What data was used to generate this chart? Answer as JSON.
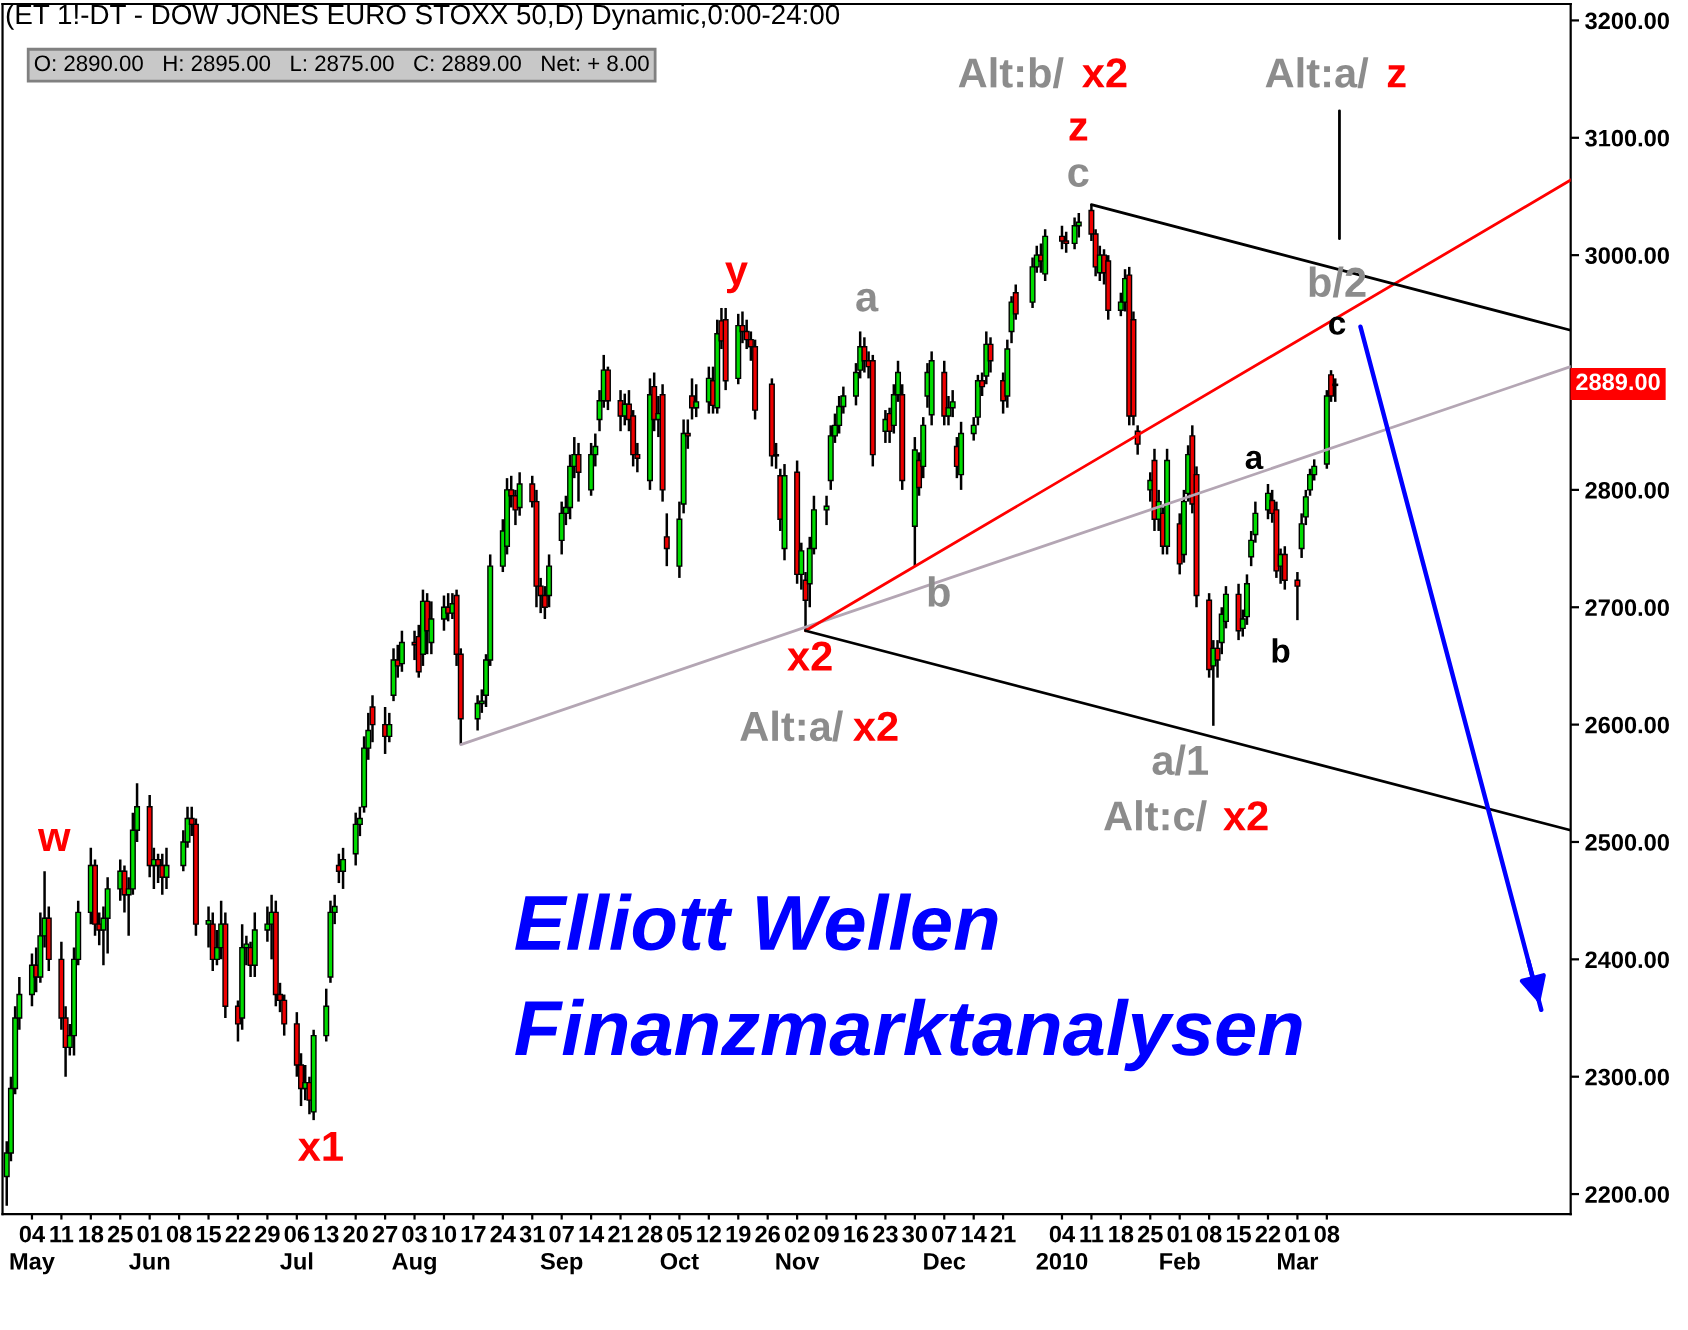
{
  "chart_data": {
    "type": "candlestick",
    "title": "(ET 1!-DT - DOW JONES EURO STOXX 50,D) Dynamic,0:00-24:00",
    "subtitle": "O: 2890.00   H: 2895.00   L: 2875.00   C: 2889.00   Net: + 8.00",
    "colors": [
      "#00dd00",
      "#00dd00",
      "#00dd00",
      "#00dd00",
      "#00dd00",
      "#ee0000",
      "#00dd00",
      "#00dd00",
      "#ee0000",
      "#ee0000",
      "#ee0000",
      "#00dd00",
      "#00dd00",
      "#00dd00",
      "#00dd00",
      "#ee0000",
      "#ee0000",
      "#00dd00",
      "#00dd00",
      "#00dd00",
      "#ee0000",
      "#00dd00",
      "#00dd00",
      "#00dd00",
      "#ee0000",
      "#00dd00",
      "#ee0000",
      "#ee0000",
      "#00dd00",
      "#00dd00",
      "#00dd00",
      "#ee0000",
      "#ee0000",
      "#00dd00",
      "#ee0000",
      "#00dd00",
      "#00dd00",
      "#ee0000",
      "#ee0000",
      "#00dd00",
      "#00dd00",
      "#ee0000",
      "#00dd00",
      "#00dd00",
      "#00dd00",
      "#ee0000",
      "#ee0000",
      "#ee0000",
      "#ee0000",
      "#ee0000",
      "#00dd00",
      "#ee0000",
      "#00dd00",
      "#00dd00",
      "#00dd00",
      "#00dd00",
      "#ee0000",
      "#00dd00",
      "#00dd00",
      "#00dd00",
      "#00dd00",
      "#00dd00",
      "#ee0000",
      "#ee0000",
      "#00dd00",
      "#00dd00",
      "#ee0000",
      "#00dd00",
      "#ee0000",
      "#ee0000",
      "#00dd00",
      "#ee0000",
      "#00dd00",
      "#00dd00",
      "#ee0000",
      "#00dd00",
      "#ee0000",
      "#ee0000",
      "#00dd00",
      "#00dd00",
      "#00dd00",
      "#00dd00",
      "#00dd00",
      "#00dd00",
      "#ee0000",
      "#ee0000",
      "#00dd00",
      "#ee0000",
      "#ee0000",
      "#ee0000",
      "#ee0000",
      "#00dd00",
      "#00dd00",
      "#00dd00",
      "#00dd00",
      "#00dd00",
      "#ee0000",
      "#00dd00",
      "#00dd00",
      "#00dd00",
      "#00dd00",
      "#ee0000",
      "#ee0000",
      "#00dd00",
      "#ee0000",
      "#ee0000",
      "#ee0000",
      "#00dd00",
      "#ee0000",
      "#00dd00",
      "#ee0000",
      "#ee0000",
      "#00dd00",
      "#00dd00",
      "#ee0000",
      "#ee0000",
      "#00dd00",
      "#00dd00",
      "#ee0000",
      "#00dd00",
      "#ee0000",
      "#ee0000",
      "#00dd00",
      "#ee0000",
      "#ee0000",
      "#ee0000",
      "#ee0000",
      "#ee0000",
      "#00dd00",
      "#ee0000",
      "#00dd00",
      "#ee0000",
      "#00dd00",
      "#ee0000",
      "#00dd00",
      "#00dd00",
      "#00dd00",
      "#00dd00",
      "#00dd00",
      "#00dd00",
      "#00dd00",
      "#00dd00",
      "#00dd00",
      "#ee0000",
      "#ee0000",
      "#ee0000",
      "#00dd00",
      "#ee0000",
      "#00dd00",
      "#00dd00",
      "#ee0000",
      "#00dd00",
      "#ee0000",
      "#00dd00",
      "#00dd00",
      "#00dd00",
      "#ee0000",
      "#00dd00",
      "#00dd00",
      "#ee0000",
      "#00dd00",
      "#00dd00",
      "#00dd00",
      "#ee0000",
      "#00dd00",
      "#ee0000",
      "#ee0000",
      "#00dd00",
      "#00dd00",
      "#ee0000",
      "#00dd00",
      "#00dd00",
      "#ee0000",
      "#00dd00",
      "#ee0000",
      "#ee0000",
      "#00dd00",
      "#00dd00",
      "#ee0000",
      "#ee0000",
      "#00dd00",
      "#ee0000",
      "#ee0000",
      "#00dd00",
      "#00dd00",
      "#ee0000",
      "#ee0000",
      "#ee0000",
      "#00dd00",
      "#ee0000",
      "#00dd00",
      "#ee0000",
      "#00dd00",
      "#ee0000",
      "#00dd00",
      "#00dd00",
      "#ee0000",
      "#ee0000",
      "#ee0000",
      "#00dd00",
      "#ee0000",
      "#00dd00",
      "#00dd00",
      "#ee0000",
      "#00dd00",
      "#00dd00",
      "#00dd00",
      "#00dd00",
      "#00dd00",
      "#ee0000",
      "#ee0000",
      "#00dd00",
      "#ee0000",
      "#ee0000",
      "#00dd00",
      "#00dd00",
      "#00dd00",
      "#00dd00",
      "#00dd00",
      "#ee0000",
      "#ee0000"
    ],
    "x": [
      "2009-04-28",
      "2009-04-29",
      "2009-04-30",
      "2009-05-01",
      "2009-05-04",
      "2009-05-05",
      "2009-05-06",
      "2009-05-07",
      "2009-05-08",
      "2009-05-11",
      "2009-05-12",
      "2009-05-13",
      "2009-05-14",
      "2009-05-15",
      "2009-05-18",
      "2009-05-19",
      "2009-05-20",
      "2009-05-21",
      "2009-05-22",
      "2009-05-25",
      "2009-05-26",
      "2009-05-27",
      "2009-05-28",
      "2009-05-29",
      "2009-06-01",
      "2009-06-02",
      "2009-06-03",
      "2009-06-04",
      "2009-06-05",
      "2009-06-09",
      "2009-06-10",
      "2009-06-11",
      "2009-06-12",
      "2009-06-15",
      "2009-06-16",
      "2009-06-17",
      "2009-06-18",
      "2009-06-19",
      "2009-06-22",
      "2009-06-23",
      "2009-06-24",
      "2009-06-25",
      "2009-06-26",
      "2009-06-29",
      "2009-06-30",
      "2009-07-01",
      "2009-07-02",
      "2009-07-03",
      "2009-07-06",
      "2009-07-07",
      "2009-07-08",
      "2009-07-09",
      "2009-07-10",
      "2009-07-13",
      "2009-07-14",
      "2009-07-15",
      "2009-07-16",
      "2009-07-17",
      "2009-07-20",
      "2009-07-21",
      "2009-07-22",
      "2009-07-23",
      "2009-07-24",
      "2009-07-27",
      "2009-07-28",
      "2009-07-29",
      "2009-07-30",
      "2009-07-31",
      "2009-08-03",
      "2009-08-04",
      "2009-08-05",
      "2009-08-06",
      "2009-08-07",
      "2009-08-10",
      "2009-08-11",
      "2009-08-12",
      "2009-08-13",
      "2009-08-14",
      "2009-08-18",
      "2009-08-19",
      "2009-08-20",
      "2009-08-21",
      "2009-08-24",
      "2009-08-25",
      "2009-08-26",
      "2009-08-27",
      "2009-08-28",
      "2009-08-31",
      "2009-09-01",
      "2009-09-02",
      "2009-09-03",
      "2009-09-04",
      "2009-09-07",
      "2009-09-08",
      "2009-09-09",
      "2009-09-10",
      "2009-09-11",
      "2009-09-14",
      "2009-09-15",
      "2009-09-16",
      "2009-09-17",
      "2009-09-18",
      "2009-09-21",
      "2009-09-22",
      "2009-09-23",
      "2009-09-24",
      "2009-09-25",
      "2009-09-28",
      "2009-09-29",
      "2009-09-30",
      "2009-10-01",
      "2009-10-02",
      "2009-10-05",
      "2009-10-06",
      "2009-10-07",
      "2009-10-08",
      "2009-10-09",
      "2009-10-12",
      "2009-10-13",
      "2009-10-14",
      "2009-10-15",
      "2009-10-16",
      "2009-10-19",
      "2009-10-20",
      "2009-10-21",
      "2009-10-22",
      "2009-10-23",
      "2009-10-27",
      "2009-10-28",
      "2009-10-29",
      "2009-10-30",
      "2009-11-02",
      "2009-11-03",
      "2009-11-04",
      "2009-11-05",
      "2009-11-06",
      "2009-11-09",
      "2009-11-10",
      "2009-11-11",
      "2009-11-12",
      "2009-11-13",
      "2009-11-16",
      "2009-11-17",
      "2009-11-18",
      "2009-11-19",
      "2009-11-20",
      "2009-11-23",
      "2009-11-24",
      "2009-11-25",
      "2009-11-26",
      "2009-11-27",
      "2009-11-30",
      "2009-12-01",
      "2009-12-02",
      "2009-12-03",
      "2009-12-04",
      "2009-12-07",
      "2009-12-08",
      "2009-12-09",
      "2009-12-10",
      "2009-12-11",
      "2009-12-14",
      "2009-12-15",
      "2009-12-16",
      "2009-12-17",
      "2009-12-18",
      "2009-12-21",
      "2009-12-22",
      "2009-12-23",
      "2009-12-24",
      "2009-12-28",
      "2009-12-29",
      "2009-12-30",
      "2009-12-31",
      "2010-01-04",
      "2010-01-05",
      "2010-01-07",
      "2010-01-08",
      "2010-01-11",
      "2010-01-12",
      "2010-01-13",
      "2010-01-14",
      "2010-01-15",
      "2010-01-18",
      "2010-01-19",
      "2010-01-20",
      "2010-01-21",
      "2010-01-22",
      "2010-01-25",
      "2010-01-26",
      "2010-01-27",
      "2010-01-28",
      "2010-01-29",
      "2010-02-01",
      "2010-02-02",
      "2010-02-03",
      "2010-02-04",
      "2010-02-05",
      "2010-02-08",
      "2010-02-09",
      "2010-02-10",
      "2010-02-11",
      "2010-02-12",
      "2010-02-15",
      "2010-02-16",
      "2010-02-17",
      "2010-02-18",
      "2010-02-19",
      "2010-02-22",
      "2010-02-23",
      "2010-02-24",
      "2010-02-25",
      "2010-02-26",
      "2010-03-01",
      "2010-03-02",
      "2010-03-03",
      "2010-03-04",
      "2010-03-05",
      "2010-03-08",
      "2010-03-09",
      "2010-03-10"
    ],
    "ohlc": [
      [
        2215,
        2245,
        2190,
        2235
      ],
      [
        2235,
        2300,
        2228,
        2290
      ],
      [
        2290,
        2360,
        2285,
        2350
      ],
      [
        2350,
        2385,
        2340,
        2370
      ],
      [
        2370,
        2405,
        2360,
        2395
      ],
      [
        2395,
        2410,
        2372,
        2385
      ],
      [
        2385,
        2440,
        2380,
        2420
      ],
      [
        2420,
        2475,
        2410,
        2435
      ],
      [
        2435,
        2445,
        2390,
        2400
      ],
      [
        2400,
        2415,
        2340,
        2350
      ],
      [
        2350,
        2360,
        2300,
        2325
      ],
      [
        2325,
        2345,
        2318,
        2335
      ],
      [
        2335,
        2410,
        2318,
        2400
      ],
      [
        2400,
        2450,
        2395,
        2440
      ],
      [
        2440,
        2495,
        2430,
        2480
      ],
      [
        2480,
        2485,
        2420,
        2430
      ],
      [
        2430,
        2440,
        2412,
        2425
      ],
      [
        2425,
        2445,
        2395,
        2435
      ],
      [
        2435,
        2470,
        2405,
        2460
      ],
      [
        2460,
        2485,
        2450,
        2475
      ],
      [
        2475,
        2480,
        2440,
        2455
      ],
      [
        2455,
        2470,
        2420,
        2460
      ],
      [
        2460,
        2525,
        2455,
        2510
      ],
      [
        2510,
        2550,
        2500,
        2530
      ],
      [
        2530,
        2540,
        2470,
        2480
      ],
      [
        2480,
        2495,
        2460,
        2485
      ],
      [
        2485,
        2490,
        2465,
        2480
      ],
      [
        2480,
        2490,
        2455,
        2470
      ],
      [
        2470,
        2495,
        2460,
        2480
      ],
      [
        2480,
        2510,
        2475,
        2500
      ],
      [
        2500,
        2530,
        2495,
        2520
      ],
      [
        2520,
        2530,
        2505,
        2515
      ],
      [
        2515,
        2520,
        2420,
        2430
      ],
      [
        2430,
        2445,
        2410,
        2433
      ],
      [
        2430,
        2440,
        2390,
        2400
      ],
      [
        2400,
        2425,
        2395,
        2410
      ],
      [
        2410,
        2450,
        2400,
        2430
      ],
      [
        2430,
        2440,
        2350,
        2360
      ],
      [
        2360,
        2365,
        2330,
        2345
      ],
      [
        2350,
        2430,
        2340,
        2410
      ],
      [
        2410,
        2420,
        2395,
        2413
      ],
      [
        2410,
        2415,
        2385,
        2395
      ],
      [
        2395,
        2440,
        2385,
        2425
      ],
      [
        2425,
        2445,
        2415,
        2430
      ],
      [
        2430,
        2455,
        2400,
        2440
      ],
      [
        2440,
        2450,
        2360,
        2370
      ],
      [
        2370,
        2380,
        2355,
        2365
      ],
      [
        2365,
        2370,
        2335,
        2345
      ],
      [
        2345,
        2355,
        2300,
        2310
      ],
      [
        2310,
        2320,
        2275,
        2290
      ],
      [
        2290,
        2310,
        2280,
        2295
      ],
      [
        2295,
        2300,
        2268,
        2280
      ],
      [
        2270,
        2340,
        2263,
        2335
      ],
      [
        2335,
        2375,
        2330,
        2360
      ],
      [
        2385,
        2450,
        2380,
        2440
      ],
      [
        2440,
        2455,
        2430,
        2445
      ],
      [
        2480,
        2490,
        2465,
        2475
      ],
      [
        2475,
        2495,
        2460,
        2485
      ],
      [
        2490,
        2525,
        2480,
        2515
      ],
      [
        2515,
        2530,
        2505,
        2520
      ],
      [
        2530,
        2590,
        2525,
        2580
      ],
      [
        2580,
        2610,
        2570,
        2595
      ],
      [
        2615,
        2625,
        2585,
        2600
      ],
      [
        2600,
        2615,
        2575,
        2590
      ],
      [
        2590,
        2610,
        2585,
        2600
      ],
      [
        2625,
        2665,
        2620,
        2655
      ],
      [
        2655,
        2668,
        2640,
        2650
      ],
      [
        2652,
        2680,
        2645,
        2670
      ],
      [
        2670,
        2680,
        2655,
        2668
      ],
      [
        2675,
        2685,
        2640,
        2645
      ],
      [
        2660,
        2715,
        2650,
        2705
      ],
      [
        2705,
        2712,
        2660,
        2680
      ],
      [
        2670,
        2705,
        2660,
        2690
      ],
      [
        2690,
        2710,
        2680,
        2700
      ],
      [
        2700,
        2712,
        2688,
        2695
      ],
      [
        2695,
        2712,
        2690,
        2703
      ],
      [
        2710,
        2715,
        2650,
        2660
      ],
      [
        2660,
        2665,
        2583,
        2605
      ],
      [
        2605,
        2625,
        2595,
        2618
      ],
      [
        2618,
        2630,
        2610,
        2620
      ],
      [
        2625,
        2660,
        2615,
        2655
      ],
      [
        2655,
        2745,
        2650,
        2735
      ],
      [
        2735,
        2775,
        2730,
        2765
      ],
      [
        2752,
        2810,
        2745,
        2800
      ],
      [
        2800,
        2812,
        2785,
        2795
      ],
      [
        2795,
        2800,
        2770,
        2783
      ],
      [
        2785,
        2815,
        2778,
        2805
      ],
      [
        2805,
        2812,
        2785,
        2790
      ],
      [
        2790,
        2800,
        2700,
        2718
      ],
      [
        2718,
        2725,
        2695,
        2710
      ],
      [
        2710,
        2718,
        2690,
        2700
      ],
      [
        2710,
        2745,
        2700,
        2735
      ],
      [
        2757,
        2790,
        2745,
        2780
      ],
      [
        2780,
        2795,
        2770,
        2785
      ],
      [
        2785,
        2830,
        2775,
        2820
      ],
      [
        2820,
        2845,
        2810,
        2830
      ],
      [
        2830,
        2840,
        2790,
        2815
      ],
      [
        2800,
        2840,
        2795,
        2830
      ],
      [
        2830,
        2848,
        2820,
        2837
      ],
      [
        2860,
        2885,
        2850,
        2876
      ],
      [
        2876,
        2915,
        2870,
        2902
      ],
      [
        2902,
        2905,
        2868,
        2876
      ],
      [
        2876,
        2885,
        2850,
        2863
      ],
      [
        2863,
        2882,
        2855,
        2873
      ],
      [
        2873,
        2885,
        2850,
        2860
      ],
      [
        2863,
        2868,
        2820,
        2830
      ],
      [
        2830,
        2840,
        2815,
        2827
      ],
      [
        2808,
        2895,
        2800,
        2881
      ],
      [
        2888,
        2900,
        2850,
        2860
      ],
      [
        2860,
        2880,
        2845,
        2865
      ],
      [
        2881,
        2890,
        2790,
        2800
      ],
      [
        2760,
        2780,
        2735,
        2750
      ],
      [
        2735,
        2790,
        2725,
        2775
      ],
      [
        2788,
        2860,
        2780,
        2848
      ],
      [
        2848,
        2860,
        2835,
        2846
      ],
      [
        2880,
        2895,
        2860,
        2870
      ],
      [
        2870,
        2890,
        2862,
        2875
      ],
      [
        2875,
        2905,
        2865,
        2895
      ],
      [
        2893,
        2905,
        2865,
        2872
      ],
      [
        2870,
        2945,
        2865,
        2933
      ],
      [
        2944,
        2955,
        2920,
        2927
      ],
      [
        2945,
        2955,
        2885,
        2893
      ],
      [
        2895,
        2950,
        2890,
        2940
      ],
      [
        2940,
        2952,
        2925,
        2935
      ],
      [
        2935,
        2945,
        2920,
        2928
      ],
      [
        2928,
        2935,
        2910,
        2922
      ],
      [
        2922,
        2928,
        2860,
        2868
      ],
      [
        2890,
        2895,
        2820,
        2829
      ],
      [
        2829,
        2840,
        2818,
        2830
      ],
      [
        2812,
        2818,
        2765,
        2775
      ],
      [
        2750,
        2822,
        2740,
        2812
      ],
      [
        2815,
        2825,
        2720,
        2728
      ],
      [
        2728,
        2755,
        2715,
        2748
      ],
      [
        2723,
        2730,
        2680,
        2706
      ],
      [
        2720,
        2760,
        2700,
        2750
      ],
      [
        2750,
        2795,
        2745,
        2783
      ],
      [
        2783,
        2795,
        2770,
        2786
      ],
      [
        2808,
        2855,
        2800,
        2846
      ],
      [
        2846,
        2865,
        2840,
        2855
      ],
      [
        2855,
        2880,
        2848,
        2871
      ],
      [
        2871,
        2888,
        2865,
        2880
      ],
      [
        2880,
        2908,
        2872,
        2900
      ],
      [
        2902,
        2935,
        2895,
        2922
      ],
      [
        2922,
        2930,
        2900,
        2910
      ],
      [
        2910,
        2918,
        2895,
        2905
      ],
      [
        2910,
        2915,
        2820,
        2830
      ],
      [
        2850,
        2868,
        2840,
        2860
      ],
      [
        2865,
        2870,
        2840,
        2850
      ],
      [
        2855,
        2890,
        2848,
        2881
      ],
      [
        2881,
        2910,
        2875,
        2900
      ],
      [
        2881,
        2890,
        2800,
        2808
      ],
      [
        2769,
        2845,
        2735,
        2834
      ],
      [
        2825,
        2832,
        2795,
        2802
      ],
      [
        2820,
        2862,
        2810,
        2855
      ],
      [
        2880,
        2908,
        2870,
        2900
      ],
      [
        2864,
        2918,
        2855,
        2910
      ],
      [
        2900,
        2910,
        2855,
        2863
      ],
      [
        2863,
        2880,
        2855,
        2870
      ],
      [
        2870,
        2885,
        2862,
        2875
      ],
      [
        2837,
        2845,
        2810,
        2820
      ],
      [
        2813,
        2858,
        2800,
        2848
      ],
      [
        2848,
        2862,
        2842,
        2855
      ],
      [
        2862,
        2898,
        2855,
        2893
      ],
      [
        2893,
        2900,
        2880,
        2888
      ],
      [
        2897,
        2935,
        2890,
        2924
      ],
      [
        2924,
        2930,
        2900,
        2910
      ],
      [
        2893,
        2900,
        2865,
        2876
      ],
      [
        2880,
        2928,
        2870,
        2920
      ],
      [
        2935,
        2965,
        2925,
        2960
      ],
      [
        2968,
        2975,
        2945,
        2950
      ],
      [
        2960,
        2998,
        2955,
        2990
      ],
      [
        2990,
        3008,
        2985,
        3000
      ],
      [
        3000,
        3010,
        2985,
        2995
      ],
      [
        2984,
        3022,
        2978,
        3016
      ],
      [
        3016,
        3025,
        3005,
        3012
      ],
      [
        3012,
        3020,
        3002,
        3010
      ],
      [
        3010,
        3032,
        3005,
        3025
      ],
      [
        3025,
        3036,
        3015,
        3028
      ],
      [
        3038,
        3043,
        3012,
        3018
      ],
      [
        3018,
        3022,
        2982,
        2990
      ],
      [
        2985,
        3008,
        2978,
        3000
      ],
      [
        3000,
        3005,
        2975,
        2985
      ],
      [
        2995,
        3000,
        2945,
        2953
      ],
      [
        2953,
        2968,
        2948,
        2960
      ],
      [
        2960,
        2988,
        2952,
        2980
      ],
      [
        2983,
        2990,
        2855,
        2863
      ],
      [
        2945,
        2952,
        2855,
        2863
      ],
      [
        2850,
        2855,
        2830,
        2839
      ],
      [
        2800,
        2815,
        2790,
        2808
      ],
      [
        2825,
        2835,
        2765,
        2775
      ],
      [
        2775,
        2800,
        2765,
        2790
      ],
      [
        2780,
        2785,
        2745,
        2752
      ],
      [
        2752,
        2835,
        2745,
        2825
      ],
      [
        2771,
        2780,
        2728,
        2737
      ],
      [
        2745,
        2800,
        2738,
        2790
      ],
      [
        2797,
        2838,
        2790,
        2830
      ],
      [
        2846,
        2855,
        2780,
        2788
      ],
      [
        2813,
        2820,
        2700,
        2710
      ],
      [
        2706,
        2712,
        2640,
        2647
      ],
      [
        2650,
        2672,
        2599,
        2665
      ],
      [
        2665,
        2672,
        2640,
        2655
      ],
      [
        2670,
        2700,
        2660,
        2694
      ],
      [
        2688,
        2718,
        2682,
        2711
      ],
      [
        2711,
        2720,
        2672,
        2680
      ],
      [
        2682,
        2698,
        2675,
        2690
      ],
      [
        2692,
        2728,
        2685,
        2720
      ],
      [
        2743,
        2765,
        2735,
        2757
      ],
      [
        2762,
        2790,
        2755,
        2780
      ],
      [
        2783,
        2805,
        2775,
        2797
      ],
      [
        2791,
        2800,
        2772,
        2780
      ],
      [
        2783,
        2790,
        2725,
        2731
      ],
      [
        2735,
        2750,
        2720,
        2745
      ],
      [
        2745,
        2752,
        2715,
        2723
      ],
      [
        2723,
        2730,
        2689,
        2718
      ],
      [
        2750,
        2780,
        2742,
        2771
      ],
      [
        2777,
        2800,
        2770,
        2794
      ],
      [
        2800,
        2818,
        2795,
        2813
      ],
      [
        2813,
        2826,
        2808,
        2820
      ],
      [
        2822,
        2885,
        2818,
        2880
      ],
      [
        2898,
        2902,
        2875,
        2880
      ],
      [
        2890,
        2895,
        2875,
        2889
      ]
    ],
    "series": [
      {
        "type": "line",
        "color": "#b4a6b4",
        "x": [
          "2009-08-14",
          "2010-05-05"
        ],
        "values": [
          2583,
          2905
        ]
      },
      {
        "type": "line",
        "color": "#ff0000",
        "x": [
          "2009-11-04",
          "2010-05-05"
        ],
        "values": [
          2680,
          3064
        ]
      },
      {
        "type": "line",
        "color": "#000000",
        "x": [
          "2009-11-04",
          "2010-05-05"
        ],
        "values": [
          2680,
          2510
        ]
      },
      {
        "type": "line",
        "color": "#000000",
        "x": [
          "2010-01-11",
          "2010-05-05"
        ],
        "values": [
          3043,
          2936
        ]
      },
      {
        "type": "line",
        "color": "#000000",
        "x": [
          "2010-03-11",
          "2010-03-11"
        ],
        "values": [
          3123,
          3014
        ]
      },
      {
        "type": "line",
        "color": "#0000ff",
        "x": [
          "2010-03-16",
          "2010-04-28"
        ],
        "values": [
          2939,
          2357
        ]
      }
    ],
    "annotations": [
      "w",
      "x1",
      "y",
      "x2",
      "Alt:a/",
      "x2",
      "a",
      "b",
      "Alt:b/",
      "x2",
      "z",
      "c",
      "a/1",
      "Alt:c/",
      "x2",
      "a",
      "b",
      "b/2",
      "c",
      "Alt:a/",
      "z",
      "2889.00",
      "Elliott Wellen",
      "Finanzmarktanalysen"
    ],
    "xlim": [
      "2009-04-27",
      "2010-05-05"
    ],
    "xticks": [
      {
        "value": "2009-05-04",
        "label": "04\nMay"
      },
      {
        "value": "2009-05-11",
        "label": "11"
      },
      {
        "value": "2009-05-18",
        "label": "18"
      },
      {
        "value": "2009-05-25",
        "label": "25"
      },
      {
        "value": "2009-06-01",
        "label": "01\nJun"
      },
      {
        "value": "2009-06-08",
        "label": "08"
      },
      {
        "value": "2009-06-15",
        "label": "15"
      },
      {
        "value": "2009-06-22",
        "label": "22"
      },
      {
        "value": "2009-06-29",
        "label": "29"
      },
      {
        "value": "2009-07-06",
        "label": "06\nJul"
      },
      {
        "value": "2009-07-13",
        "label": "13"
      },
      {
        "value": "2009-07-20",
        "label": "20"
      },
      {
        "value": "2009-07-27",
        "label": "27"
      },
      {
        "value": "2009-08-03",
        "label": "03\nAug"
      },
      {
        "value": "2009-08-10",
        "label": "10"
      },
      {
        "value": "2009-08-17",
        "label": "17"
      },
      {
        "value": "2009-08-24",
        "label": "24"
      },
      {
        "value": "2009-08-31",
        "label": "31"
      },
      {
        "value": "2009-09-07",
        "label": "07\nSep"
      },
      {
        "value": "2009-09-14",
        "label": "14"
      },
      {
        "value": "2009-09-21",
        "label": "21"
      },
      {
        "value": "2009-09-28",
        "label": "28"
      },
      {
        "value": "2009-10-05",
        "label": "05\nOct"
      },
      {
        "value": "2009-10-12",
        "label": "12"
      },
      {
        "value": "2009-10-19",
        "label": "19"
      },
      {
        "value": "2009-10-26",
        "label": "26"
      },
      {
        "value": "2009-11-02",
        "label": "02\nNov"
      },
      {
        "value": "2009-11-09",
        "label": "09"
      },
      {
        "value": "2009-11-16",
        "label": "16"
      },
      {
        "value": "2009-11-23",
        "label": "23"
      },
      {
        "value": "2009-11-30",
        "label": "30"
      },
      {
        "value": "2009-12-07",
        "label": "07\nDec"
      },
      {
        "value": "2009-12-14",
        "label": "14"
      },
      {
        "value": "2009-12-21",
        "label": "21"
      },
      {
        "value": "2010-01-04",
        "label": "04\n2010"
      },
      {
        "value": "2010-01-11",
        "label": "11"
      },
      {
        "value": "2010-01-18",
        "label": "18"
      },
      {
        "value": "2010-01-25",
        "label": "25"
      },
      {
        "value": "2010-02-01",
        "label": "01\nFeb"
      },
      {
        "value": "2010-02-08",
        "label": "08"
      },
      {
        "value": "2010-02-15",
        "label": "15"
      },
      {
        "value": "2010-02-22",
        "label": "22"
      },
      {
        "value": "2010-03-01",
        "label": "01\nMar"
      },
      {
        "value": "2010-03-08",
        "label": "08"
      }
    ],
    "ylim": [
      2183,
      3214
    ],
    "yticks": [
      {
        "value": 2200,
        "label": "2200.00"
      },
      {
        "value": 2300,
        "label": "2300.00"
      },
      {
        "value": 2400,
        "label": "2400.00"
      },
      {
        "value": 2500,
        "label": "2500.00"
      },
      {
        "value": 2600,
        "label": "2600.00"
      },
      {
        "value": 2700,
        "label": "2700.00"
      },
      {
        "value": 2800,
        "label": "2800.00"
      },
      {
        "value": 2900,
        "label": null
      },
      {
        "value": 3000,
        "label": "3000.00"
      },
      {
        "value": 3100,
        "label": "3100.00"
      },
      {
        "value": 3200,
        "label": "3200.00"
      }
    ]
  }
}
